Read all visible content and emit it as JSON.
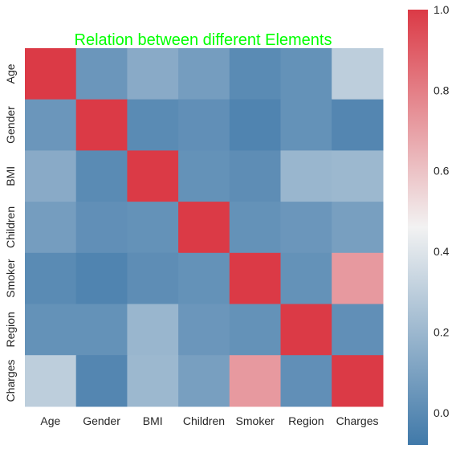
{
  "chart_data": {
    "type": "heatmap",
    "title": "Relation between different Elements",
    "title_color": "#00ff00",
    "x_labels": [
      "Age",
      "Gender",
      "BMI",
      "Children",
      "Smoker",
      "Region",
      "Charges"
    ],
    "y_labels": [
      "Age",
      "Gender",
      "BMI",
      "Children",
      "Smoker",
      "Region",
      "Charges"
    ],
    "matrix": [
      [
        1.0,
        0.05,
        0.14,
        0.08,
        0.0,
        0.03,
        0.3
      ],
      [
        0.05,
        1.0,
        0.0,
        0.02,
        -0.03,
        0.03,
        -0.02
      ],
      [
        0.14,
        0.0,
        1.0,
        0.03,
        0.01,
        0.19,
        0.2
      ],
      [
        0.08,
        0.02,
        0.03,
        1.0,
        0.03,
        0.05,
        0.09
      ],
      [
        0.0,
        -0.03,
        0.01,
        0.03,
        1.0,
        0.03,
        0.72
      ],
      [
        0.03,
        0.03,
        0.19,
        0.05,
        0.03,
        1.0,
        0.02
      ],
      [
        0.3,
        -0.02,
        0.2,
        0.09,
        0.72,
        0.02,
        1.0
      ]
    ],
    "vmin": -0.08,
    "vmax": 1.0,
    "colorbar_ticks": [
      "0.0",
      "0.2",
      "0.4",
      "0.6",
      "0.8",
      "1.0"
    ],
    "colorscale": {
      "low": "#4079a9",
      "mid": "#f2f2f2",
      "high": "#db3a46"
    }
  }
}
